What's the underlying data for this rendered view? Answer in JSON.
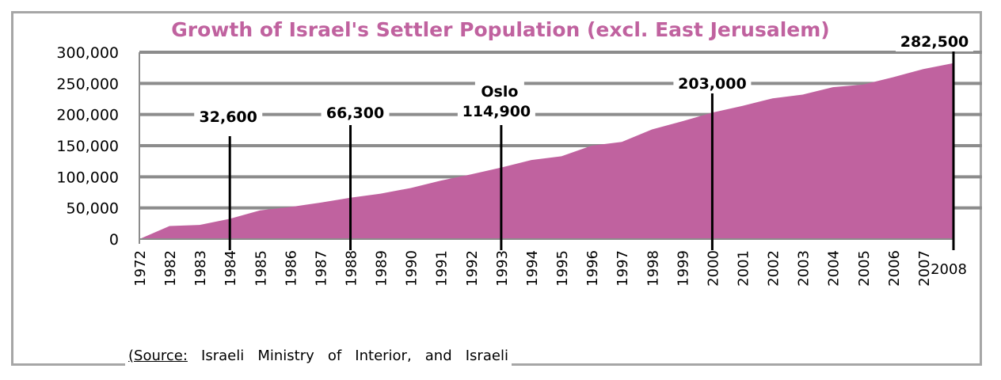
{
  "chart_data": {
    "type": "area",
    "title": "Growth of Israel's Settler Population (excl. East Jerusalem)",
    "x": [
      "1972",
      "1982",
      "1983",
      "1984",
      "1985",
      "1986",
      "1987",
      "1988",
      "1989",
      "1990",
      "1991",
      "1992",
      "1993",
      "1994",
      "1995",
      "1996",
      "1997",
      "1998",
      "1999",
      "2000",
      "2001",
      "2002",
      "2003",
      "2004",
      "2005",
      "2006",
      "2007",
      "2008"
    ],
    "values": [
      0,
      21000,
      22800,
      32600,
      46000,
      51500,
      58500,
      66300,
      73000,
      82000,
      94000,
      104000,
      114900,
      127000,
      133000,
      150000,
      156000,
      176000,
      189000,
      203000,
      214000,
      226000,
      232000,
      244000,
      248000,
      260000,
      273000,
      282500
    ],
    "ylim": [
      0,
      300000
    ],
    "yticks": [
      "0",
      "50,000",
      "100,000",
      "150,000",
      "200,000",
      "250,000",
      "300,000"
    ],
    "ytick_values": [
      0,
      50000,
      100000,
      150000,
      200000,
      250000,
      300000
    ],
    "color": "#c0629f",
    "grid": true,
    "annotations": [
      {
        "x": "1984",
        "label": "32,600"
      },
      {
        "x": "1988",
        "label": "66,300"
      },
      {
        "x": "1993",
        "label": "114,900",
        "note": "Oslo"
      },
      {
        "x": "2000",
        "label": "203,000"
      },
      {
        "x": "2008",
        "label": "282,500"
      }
    ]
  },
  "source_note": {
    "label": "(Source:",
    "words": [
      "Israeli",
      "Ministry",
      "of",
      "Interior,",
      "and",
      "Israeli"
    ]
  }
}
